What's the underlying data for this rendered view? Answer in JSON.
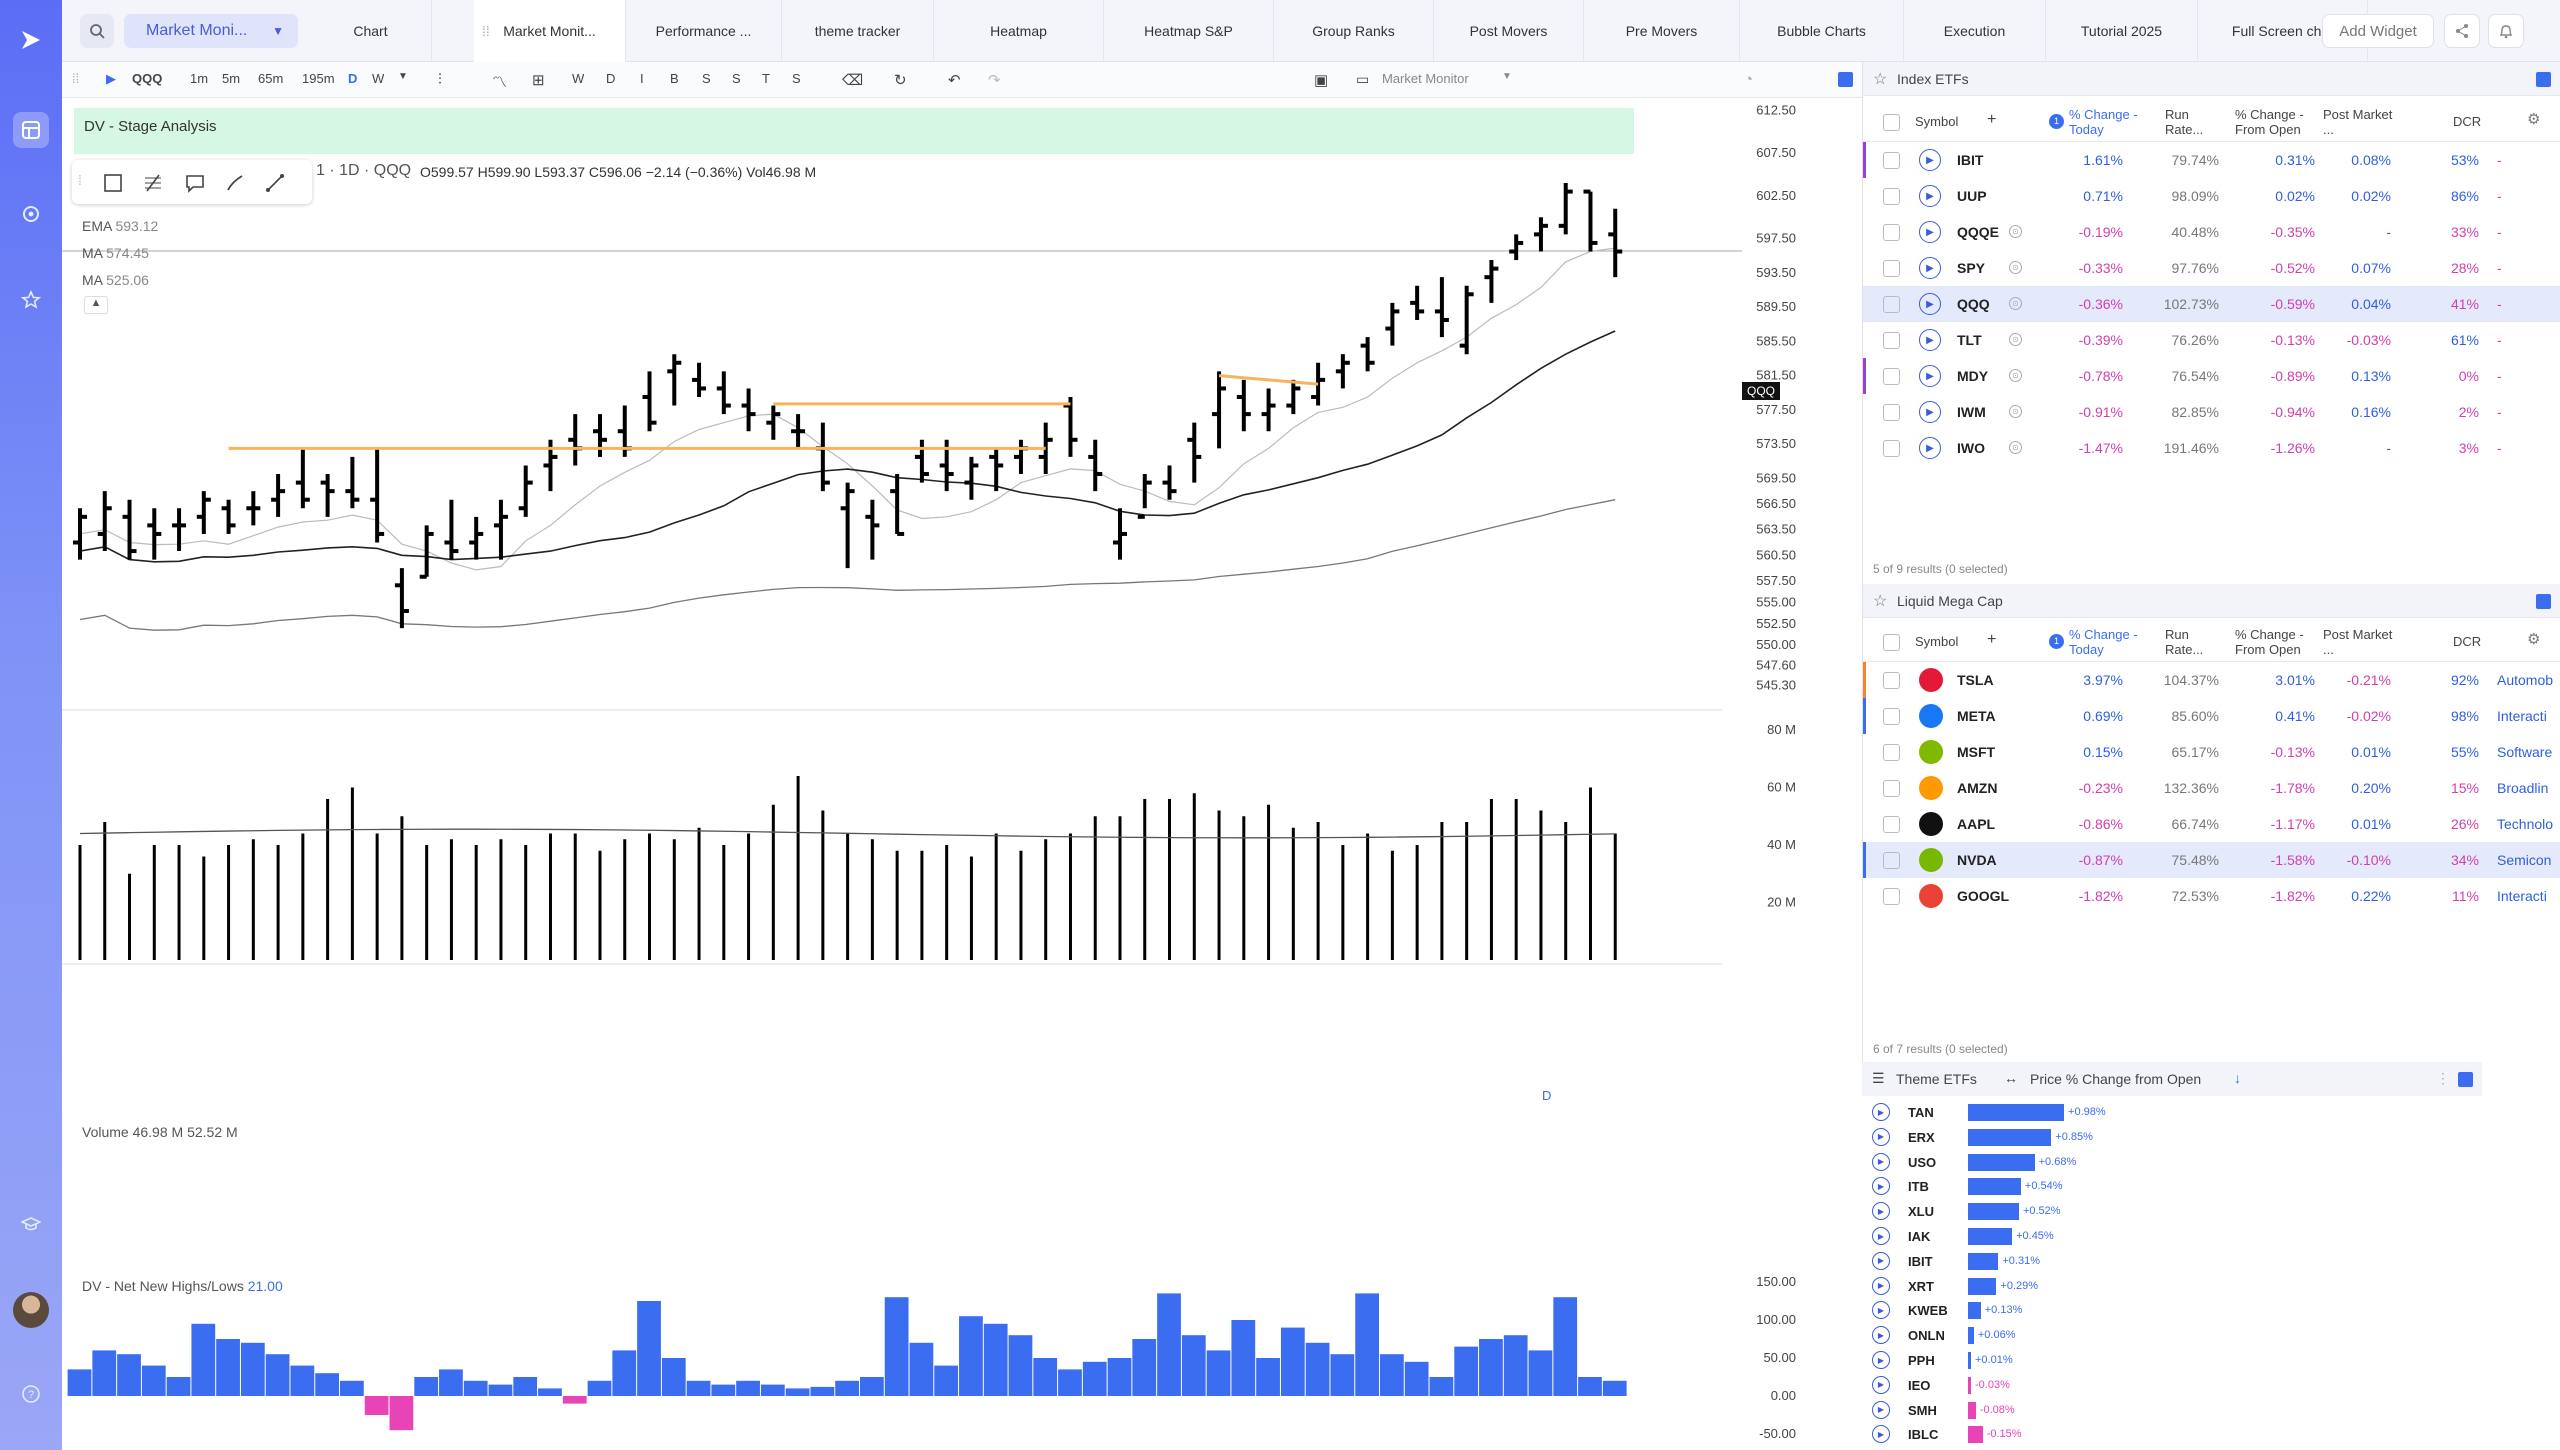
{
  "topbar": {
    "dropdown": "Market Moni...",
    "tabs": [
      "Chart",
      "Market Monit...",
      "Performance ...",
      "theme tracker",
      "Heatmap",
      "Heatmap S&P",
      "Group Ranks",
      "Post Movers",
      "Pre Movers",
      "Bubble Charts",
      "Execution",
      "Tutorial 2025",
      "Full Screen ch..."
    ],
    "add_widget": "Add Widget"
  },
  "chart_toolbar": {
    "symbol": "QQQ",
    "intervals": [
      "1m",
      "5m",
      "65m",
      "195m",
      "D",
      "W"
    ],
    "letters": [
      "W",
      "D",
      "I",
      "B",
      "S",
      "S",
      "T",
      "S"
    ],
    "layout": "Market Monitor"
  },
  "chart": {
    "banner": "DV - Stage Analysis",
    "header": "1 · 1D · QQQ",
    "ohlc": "O599.57  H599.90  L593.37  C596.06  −2.14 (−0.36%)  Vol46.98 M",
    "ema": "EMA",
    "ema_val": "593.12",
    "ma1": "MA",
    "ma1_val": "574.45",
    "ma2": "MA",
    "ma2_val": "525.06",
    "price_tag": "QQQ",
    "d_marker": "D",
    "volume_label": "Volume",
    "volume_vals": "46.98 M  52.52 M",
    "nnhl_label": "DV - Net New Highs/Lows",
    "nnhl_val": "21.00",
    "price_ticks": [
      "612.50",
      "607.50",
      "602.50",
      "597.50",
      "593.50",
      "589.50",
      "585.50",
      "581.50",
      "577.50",
      "573.50",
      "569.50",
      "566.50",
      "563.50",
      "560.50",
      "557.50",
      "555.00",
      "552.50",
      "550.00",
      "547.60",
      "545.30"
    ],
    "volume_ticks": [
      "80 M",
      "60 M",
      "40 M",
      "20 M"
    ],
    "nnhl_ticks": [
      "150.00",
      "100.00",
      "50.00",
      "0.00",
      "-50.00"
    ]
  },
  "chart_data": {
    "type": "ohlc",
    "bars": [
      [
        562,
        566,
        560,
        565
      ],
      [
        563,
        568,
        561,
        566
      ],
      [
        565,
        567,
        560,
        561
      ],
      [
        564,
        566,
        560,
        563
      ],
      [
        564,
        566,
        561,
        564
      ],
      [
        565,
        568,
        563,
        567
      ],
      [
        566,
        567,
        563,
        564
      ],
      [
        566,
        568,
        564,
        566
      ],
      [
        567,
        570,
        565,
        568
      ],
      [
        569,
        573,
        566,
        567
      ],
      [
        569,
        570,
        565,
        568
      ],
      [
        568,
        572,
        566,
        567
      ],
      [
        567,
        573,
        562,
        563
      ],
      [
        557,
        559,
        552,
        554
      ],
      [
        558,
        564,
        558,
        563
      ],
      [
        562,
        567,
        560,
        561
      ],
      [
        562,
        565,
        560,
        563
      ],
      [
        564,
        567,
        560,
        565
      ],
      [
        566,
        571,
        565,
        569
      ],
      [
        571,
        574,
        568,
        572
      ],
      [
        574,
        577,
        571,
        573
      ],
      [
        575,
        577,
        572,
        574
      ],
      [
        575,
        578,
        572,
        573
      ],
      [
        579,
        582,
        575,
        576
      ],
      [
        582,
        584,
        578,
        583
      ],
      [
        581,
        583,
        579,
        580
      ],
      [
        580,
        582,
        577,
        578
      ],
      [
        578,
        580,
        575,
        577
      ],
      [
        576,
        578,
        574,
        577
      ],
      [
        575,
        577,
        573,
        575
      ],
      [
        573,
        576,
        568,
        569
      ],
      [
        566,
        569,
        559,
        568
      ],
      [
        565,
        567,
        560,
        564
      ],
      [
        568,
        570,
        563,
        563
      ],
      [
        572,
        574,
        569,
        570
      ],
      [
        571,
        574,
        568,
        570
      ],
      [
        569,
        572,
        567,
        571
      ],
      [
        572,
        573,
        568,
        571
      ],
      [
        572,
        574,
        570,
        573
      ],
      [
        572,
        576,
        570,
        574
      ],
      [
        578,
        579,
        572,
        574
      ],
      [
        572,
        574,
        568,
        570
      ],
      [
        562,
        566,
        560,
        563
      ],
      [
        565,
        570,
        566,
        569
      ],
      [
        569,
        571,
        567,
        568
      ],
      [
        574,
        576,
        569,
        572
      ],
      [
        577,
        582,
        573,
        580
      ],
      [
        579,
        581,
        575,
        577
      ],
      [
        577,
        580,
        575,
        578
      ],
      [
        578,
        581,
        577,
        580
      ],
      [
        579,
        583,
        578,
        581
      ],
      [
        582,
        584,
        580,
        583
      ],
      [
        585,
        586,
        582,
        583
      ],
      [
        587,
        590,
        585,
        589
      ],
      [
        590,
        592,
        588,
        589
      ],
      [
        589,
        593,
        586,
        588
      ],
      [
        585,
        592,
        584,
        591
      ],
      [
        593,
        595,
        590,
        594
      ],
      [
        596,
        598,
        595,
        597
      ],
      [
        598,
        600,
        596,
        599
      ],
      [
        599,
        604,
        598,
        603
      ],
      [
        603,
        603,
        596,
        597
      ],
      [
        598,
        601,
        593,
        596
      ]
    ],
    "volume": [
      40,
      48,
      30,
      40,
      40,
      36,
      40,
      42,
      40,
      44,
      56,
      60,
      44,
      50,
      40,
      42,
      40,
      42,
      40,
      44,
      44,
      38,
      42,
      44,
      42,
      46,
      40,
      44,
      54,
      64,
      52,
      44,
      42,
      38,
      38,
      40,
      36,
      44,
      38,
      42,
      44,
      50,
      50,
      56,
      56,
      58,
      52,
      50,
      54,
      46,
      48,
      40,
      44,
      38,
      40,
      48,
      48,
      56,
      56,
      52,
      48,
      60,
      44
    ],
    "nnhl": [
      35,
      60,
      55,
      40,
      25,
      95,
      75,
      70,
      55,
      40,
      30,
      20,
      -25,
      -45,
      25,
      35,
      20,
      15,
      25,
      10,
      -10,
      20,
      60,
      125,
      50,
      20,
      15,
      20,
      15,
      10,
      12,
      20,
      25,
      130,
      70,
      40,
      105,
      95,
      80,
      50,
      35,
      45,
      50,
      75,
      135,
      80,
      60,
      100,
      50,
      90,
      70,
      55,
      135,
      55,
      45,
      25,
      65,
      75,
      80,
      60,
      130,
      25,
      20
    ],
    "ylim": [
      545,
      613
    ]
  },
  "index_etfs": {
    "title": "Index ETFs",
    "headers": [
      "Symbol",
      "% Change - Today",
      "Run Rate...",
      "% Change - From Open",
      "Post Market ...",
      "DCR"
    ],
    "rows": [
      {
        "sym": "IBIT",
        "chg": "1.61%",
        "run": "79.74%",
        "open": "0.31%",
        "post": "0.08%",
        "dcr": "53%",
        "extra": "-"
      },
      {
        "sym": "UUP",
        "chg": "0.71%",
        "run": "98.09%",
        "open": "0.02%",
        "post": "0.02%",
        "dcr": "86%",
        "extra": "-"
      },
      {
        "sym": "QQQE",
        "chg": "-0.19%",
        "run": "40.48%",
        "open": "-0.35%",
        "post": "-",
        "dcr": "33%",
        "extra": "-"
      },
      {
        "sym": "SPY",
        "chg": "-0.33%",
        "run": "97.76%",
        "open": "-0.52%",
        "post": "0.07%",
        "dcr": "28%",
        "extra": "-"
      },
      {
        "sym": "QQQ",
        "chg": "-0.36%",
        "run": "102.73%",
        "open": "-0.59%",
        "post": "0.04%",
        "dcr": "41%",
        "extra": "-"
      },
      {
        "sym": "TLT",
        "chg": "-0.39%",
        "run": "76.26%",
        "open": "-0.13%",
        "post": "-0.03%",
        "dcr": "61%",
        "extra": "-"
      },
      {
        "sym": "MDY",
        "chg": "-0.78%",
        "run": "76.54%",
        "open": "-0.89%",
        "post": "0.13%",
        "dcr": "0%",
        "extra": "-"
      },
      {
        "sym": "IWM",
        "chg": "-0.91%",
        "run": "82.85%",
        "open": "-0.94%",
        "post": "0.16%",
        "dcr": "2%",
        "extra": "-"
      },
      {
        "sym": "IWO",
        "chg": "-1.47%",
        "run": "191.46%",
        "open": "-1.26%",
        "post": "-",
        "dcr": "3%",
        "extra": "-"
      }
    ],
    "footer": "5 of 9 results (0 selected)"
  },
  "mega_cap": {
    "title": "Liquid Mega Cap",
    "headers": [
      "Symbol",
      "% Change - Today",
      "Run Rate...",
      "% Change - From Open",
      "Post Market ...",
      "DCR"
    ],
    "rows": [
      {
        "sym": "TSLA",
        "chg": "3.97%",
        "run": "104.37%",
        "open": "3.01%",
        "post": "-0.21%",
        "dcr": "92%",
        "extra": "Automob"
      },
      {
        "sym": "META",
        "chg": "0.69%",
        "run": "85.60%",
        "open": "0.41%",
        "post": "-0.02%",
        "dcr": "98%",
        "extra": "Interacti"
      },
      {
        "sym": "MSFT",
        "chg": "0.15%",
        "run": "65.17%",
        "open": "-0.13%",
        "post": "0.01%",
        "dcr": "55%",
        "extra": "Software"
      },
      {
        "sym": "AMZN",
        "chg": "-0.23%",
        "run": "132.36%",
        "open": "-1.78%",
        "post": "0.20%",
        "dcr": "15%",
        "extra": "Broadlin"
      },
      {
        "sym": "AAPL",
        "chg": "-0.86%",
        "run": "66.74%",
        "open": "-1.17%",
        "post": "0.01%",
        "dcr": "26%",
        "extra": "Technolo"
      },
      {
        "sym": "NVDA",
        "chg": "-0.87%",
        "run": "75.48%",
        "open": "-1.58%",
        "post": "-0.10%",
        "dcr": "34%",
        "extra": "Semicon"
      },
      {
        "sym": "GOOGL",
        "chg": "-1.82%",
        "run": "72.53%",
        "open": "-1.82%",
        "post": "0.22%",
        "dcr": "11%",
        "extra": "Interacti"
      }
    ],
    "footer": "6 of 7 results (0 selected)"
  },
  "theme_etfs": {
    "title": "Theme ETFs",
    "metric": "Price % Change from Open",
    "rows": [
      {
        "sym": "TAN",
        "val": 0.98,
        "label": "+0.98%"
      },
      {
        "sym": "ERX",
        "val": 0.85,
        "label": "+0.85%"
      },
      {
        "sym": "USO",
        "val": 0.68,
        "label": "+0.68%"
      },
      {
        "sym": "ITB",
        "val": 0.54,
        "label": "+0.54%"
      },
      {
        "sym": "XLU",
        "val": 0.52,
        "label": "+0.52%"
      },
      {
        "sym": "IAK",
        "val": 0.45,
        "label": "+0.45%"
      },
      {
        "sym": "IBIT",
        "val": 0.31,
        "label": "+0.31%"
      },
      {
        "sym": "XRT",
        "val": 0.29,
        "label": "+0.29%"
      },
      {
        "sym": "KWEB",
        "val": 0.13,
        "label": "+0.13%"
      },
      {
        "sym": "ONLN",
        "val": 0.06,
        "label": "+0.06%"
      },
      {
        "sym": "PPH",
        "val": 0.01,
        "label": "+0.01%"
      },
      {
        "sym": "IEO",
        "val": -0.03,
        "label": "-0.03%"
      },
      {
        "sym": "SMH",
        "val": -0.08,
        "label": "-0.08%"
      },
      {
        "sym": "IBLC",
        "val": -0.15,
        "label": "-0.15%"
      }
    ]
  },
  "colors": {
    "accent": "#3b6df0",
    "pos": "#2f5fe0",
    "neg": "#d13fae",
    "ma_line": "#222222"
  }
}
